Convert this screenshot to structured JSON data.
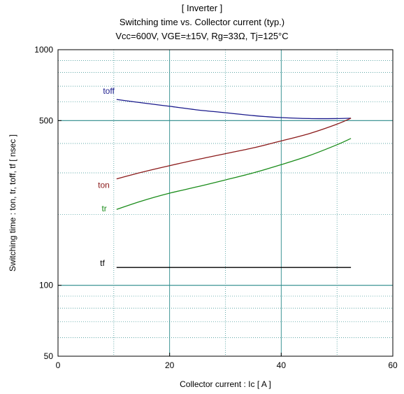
{
  "chart_data": {
    "type": "line",
    "title_lines": [
      "[ Inverter ]",
      "Switching time  vs.  Collector current  (typ.)",
      "Vcc=600V, VGE=±15V, Rg=33Ω, Tj=125°C"
    ],
    "xlabel": "Collector current  :  Ic  [ A ]",
    "ylabel": "Switching time  :  ton, tr, toff, tf  [ nsec ]",
    "x_scale": "linear",
    "y_scale": "log",
    "xlim": [
      0,
      60
    ],
    "ylim": [
      50,
      1000
    ],
    "x_ticks": [
      0,
      20,
      40,
      60
    ],
    "y_ticks": [
      50,
      100,
      500,
      1000
    ],
    "grid": true,
    "series": [
      {
        "name": "toff",
        "color": "#1a1a8c",
        "x": [
          10.5,
          15,
          20,
          25,
          30,
          35,
          40,
          45,
          50,
          52.5
        ],
        "y": [
          615,
          595,
          575,
          555,
          540,
          525,
          515,
          510,
          510,
          512
        ]
      },
      {
        "name": "ton",
        "color": "#8b1a1a",
        "x": [
          10.5,
          15,
          20,
          25,
          30,
          35,
          40,
          45,
          50,
          52.5
        ],
        "y": [
          283,
          302,
          322,
          342,
          362,
          383,
          410,
          440,
          483,
          512
        ]
      },
      {
        "name": "tr",
        "color": "#1a8c1a",
        "x": [
          10.5,
          15,
          20,
          25,
          30,
          35,
          40,
          45,
          50,
          52.5
        ],
        "y": [
          210,
          228,
          246,
          262,
          280,
          300,
          325,
          355,
          395,
          420
        ]
      },
      {
        "name": "tf",
        "color": "#000000",
        "x": [
          10.5,
          52.5
        ],
        "y": [
          119,
          119
        ]
      }
    ]
  }
}
